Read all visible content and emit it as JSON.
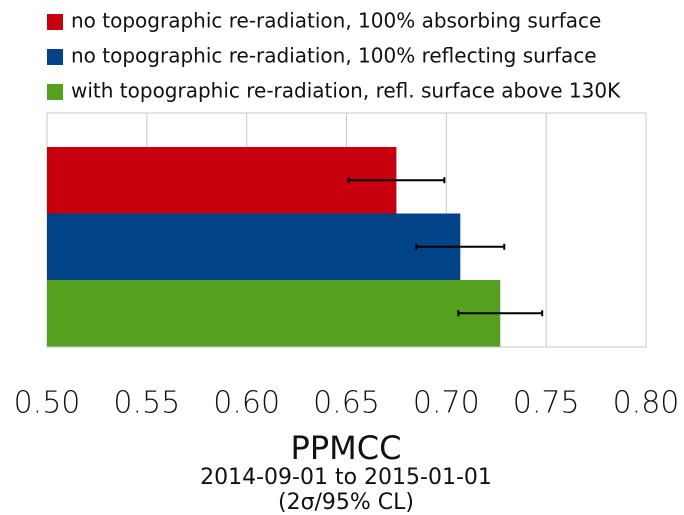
{
  "chart_data": {
    "type": "barh",
    "series": [
      {
        "name": "no topographic re-radiation, 100% absorbing surface",
        "color": "#c8000e",
        "values": [
          0.675
        ],
        "errors": [
          0.024
        ]
      },
      {
        "name": "no topographic re-radiation, 100% reflecting surface",
        "color": "#004387",
        "values": [
          0.707
        ],
        "errors": [
          0.022
        ]
      },
      {
        "name": "with topographic re-radiation, refl. surface above 130K",
        "color": "#55a01e",
        "values": [
          0.727
        ],
        "errors": [
          0.021
        ]
      }
    ],
    "xlim": [
      0.5,
      0.8
    ],
    "xticks": [
      {
        "value": 0.5,
        "label": "0.50"
      },
      {
        "value": 0.55,
        "label": "0.55"
      },
      {
        "value": 0.6,
        "label": "0.60"
      },
      {
        "value": 0.65,
        "label": "0.65"
      },
      {
        "value": 0.7,
        "label": "0.70"
      },
      {
        "value": 0.75,
        "label": "0.75"
      },
      {
        "value": 0.8,
        "label": "0.80"
      }
    ],
    "grid": true,
    "xlabel": "PPMCC",
    "xlabel_notes": [
      "2014-09-01 to 2015-01-01",
      "(2σ/95% CL)"
    ]
  }
}
